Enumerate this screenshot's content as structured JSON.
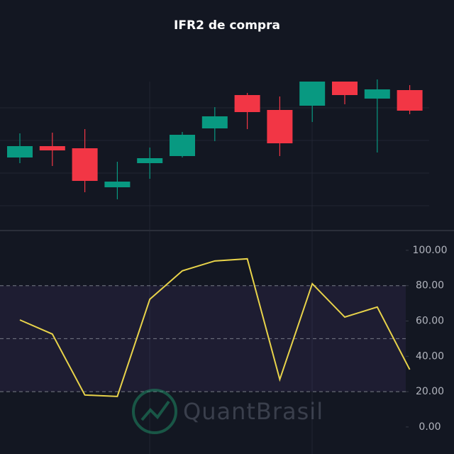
{
  "chart_data": [
    {
      "type": "candlestick",
      "title": "IFR2 de compra",
      "open": [
        98,
        114,
        111,
        56,
        90,
        100,
        139,
        186,
        165,
        171,
        205,
        181,
        193
      ],
      "high": [
        132,
        133,
        138,
        92,
        112,
        134,
        169,
        189,
        184,
        205,
        205,
        208,
        200
      ],
      "low": [
        90,
        86,
        49,
        39,
        68,
        98,
        121,
        138,
        100,
        148,
        173,
        105,
        159
      ],
      "close": [
        114,
        108,
        65,
        64,
        97,
        130,
        156,
        162,
        118,
        205,
        186,
        194,
        164
      ],
      "up_color": "#089981",
      "down_color": "#f23645",
      "ylim": [
        -5,
        260
      ],
      "yticks": [
        30,
        76,
        122,
        168
      ],
      "grid": true
    },
    {
      "type": "line",
      "values": [
        60.6,
        52.6,
        18.1,
        17.3,
        72.3,
        88.4,
        94.0,
        95.2,
        26.9,
        81.1,
        62.2,
        67.9,
        32.5
      ],
      "color": "#e8d34a",
      "ylim": [
        -15.3,
        111.2
      ],
      "yticks": [
        {
          "value": 0,
          "label": "0.00"
        },
        {
          "value": 20,
          "label": "20.00"
        },
        {
          "value": 40,
          "label": "40.00"
        },
        {
          "value": 60,
          "label": "60.00"
        },
        {
          "value": 80,
          "label": "80.00"
        },
        {
          "value": 100,
          "label": "100.00"
        }
      ],
      "band": [
        20,
        80
      ],
      "band_color": "#7e57c2",
      "levels": [
        20,
        50,
        80
      ],
      "watermark": "QuantBrasil"
    }
  ]
}
